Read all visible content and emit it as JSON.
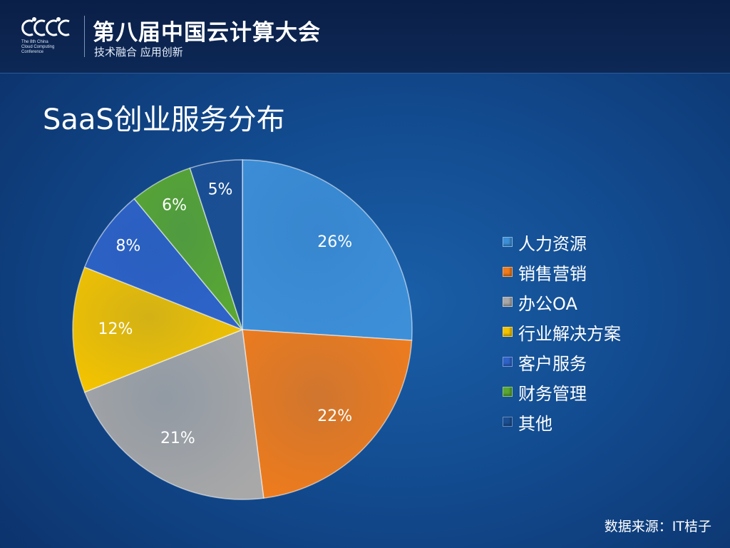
{
  "header": {
    "logo_text": "CCCC",
    "logo_lines": [
      "The 8th China",
      "Cloud Computing",
      "Conference"
    ],
    "title": "第八届中国云计算大会",
    "subtitle": "技术融合 应用创新"
  },
  "slide": {
    "title": "SaaS创业服务分布",
    "source": "数据来源：IT桔子"
  },
  "chart_data": {
    "type": "pie",
    "title": "SaaS创业服务分布",
    "categories": [
      "人力资源",
      "销售营销",
      "办公OA",
      "行业解决方案",
      "客户服务",
      "财务管理",
      "其他"
    ],
    "values": [
      26,
      22,
      21,
      12,
      8,
      6,
      5
    ],
    "labels": [
      "26%",
      "22%",
      "21%",
      "12%",
      "8%",
      "6%",
      "5%"
    ],
    "colors": [
      "#3d8fd8",
      "#f07c1c",
      "#a8a8a8",
      "#f5c400",
      "#2e63c8",
      "#5aa832",
      "#1b4f94"
    ],
    "legend": "right",
    "start": "top",
    "direction": "clockwise"
  }
}
